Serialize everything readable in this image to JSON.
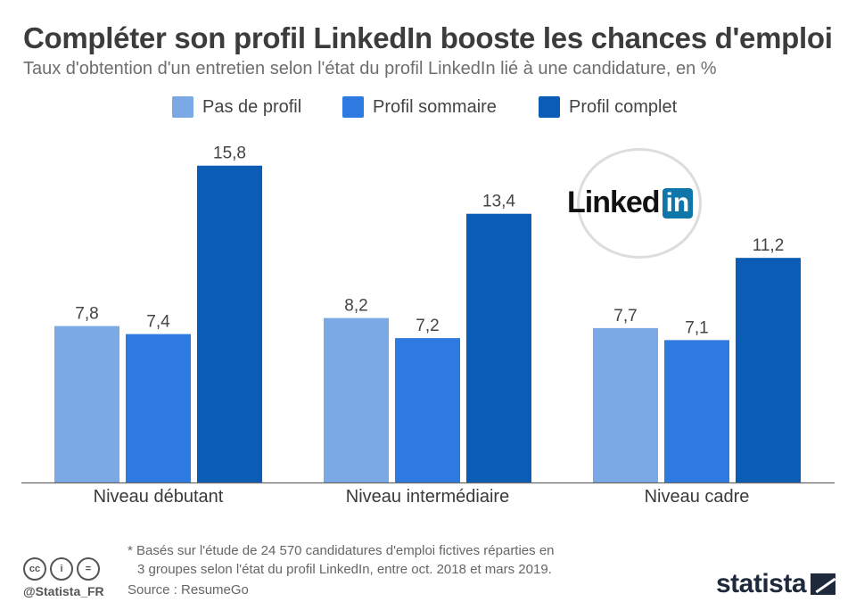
{
  "header": {
    "title": "Compléter son profil LinkedIn booste les chances d'emploi",
    "subtitle": "Taux d'obtention d'un entretien selon l'état du profil LinkedIn lié à une candidature, en %"
  },
  "legend": [
    {
      "label": "Pas de profil",
      "color": "#7aa9e6"
    },
    {
      "label": "Profil sommaire",
      "color": "#2d7be0"
    },
    {
      "label": "Profil complet",
      "color": "#0b5cb5"
    }
  ],
  "logo": {
    "text": "Linked",
    "box_text": "in",
    "icon": "linkedin-logo"
  },
  "chart_data": {
    "type": "bar",
    "title": "Compléter son profil LinkedIn booste les chances d'emploi",
    "subtitle": "Taux d'obtention d'un entretien selon l'état du profil LinkedIn lié à une candidature, en %",
    "categories": [
      "Niveau débutant",
      "Niveau intermédiaire",
      "Niveau cadre"
    ],
    "series": [
      {
        "name": "Pas de profil",
        "values": [
          7.8,
          8.2,
          7.7
        ],
        "labels": [
          "7,8",
          "8,2",
          "7,7"
        ],
        "color": "#7aa9e6"
      },
      {
        "name": "Profil sommaire",
        "values": [
          7.4,
          7.2,
          7.1
        ],
        "labels": [
          "7,4",
          "7,2",
          "7,1"
        ],
        "color": "#2d7be0"
      },
      {
        "name": "Profil complet",
        "values": [
          15.8,
          13.4,
          11.2
        ],
        "labels": [
          "15,8",
          "13,4",
          "11,2"
        ],
        "color": "#0b5cb5"
      }
    ],
    "ylim": [
      0,
      16.5
    ],
    "grid": false,
    "legend_position": "top"
  },
  "footer": {
    "note_line1": "* Basés sur l'étude de 24 570 candidatures d'emploi fictives réparties en",
    "note_line2": "3 groupes selon l'état du profil LinkedIn, entre oct. 2018 et mars 2019.",
    "source": "Source : ResumeGo",
    "handle": "@Statista_FR",
    "brand": "statista",
    "license_icons": [
      "cc-icon",
      "by-icon",
      "nd-icon"
    ],
    "license_glyphs": [
      "cc",
      "i",
      "="
    ]
  }
}
